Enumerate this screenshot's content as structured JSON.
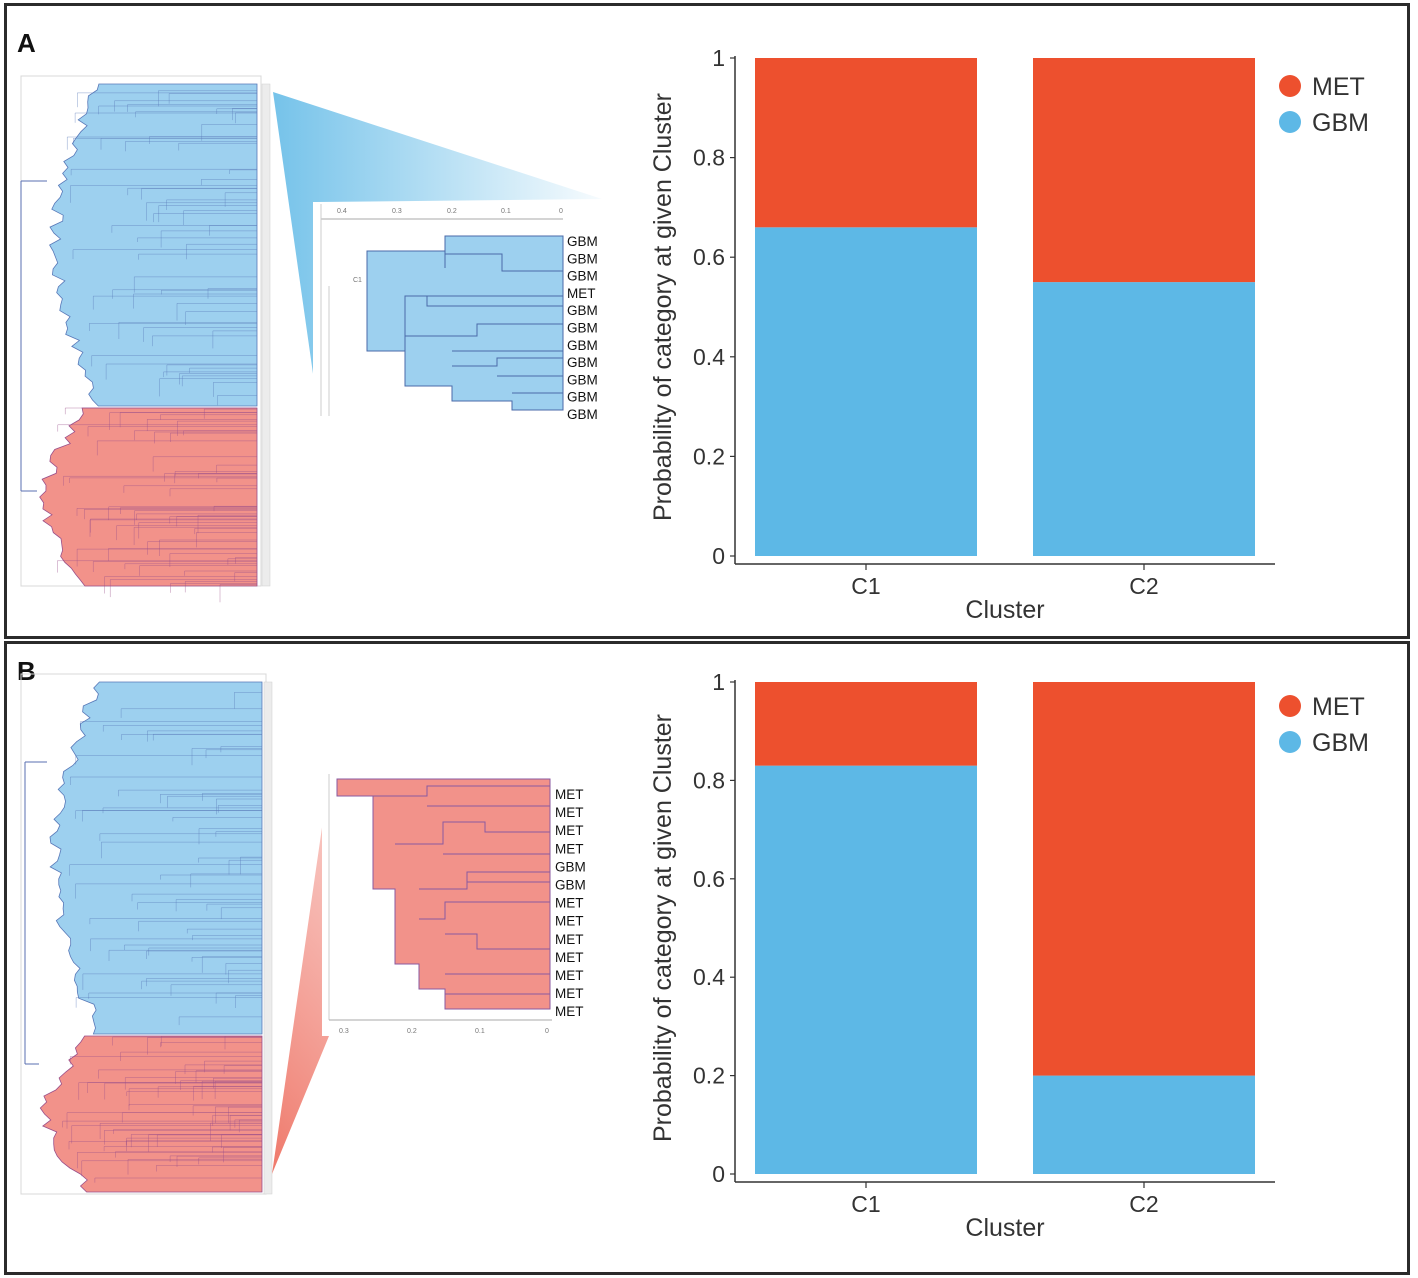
{
  "colors": {
    "met": "#ed502e",
    "gbm": "#5db8e6",
    "tree_blue": "#9dd0ef",
    "tree_red": "#f2928a"
  },
  "panels": [
    {
      "label": "A",
      "inset": {
        "cluster_label": "C1",
        "axis_ticks": [
          "0.4",
          "0.3",
          "0.2",
          "0.1",
          "0"
        ],
        "leaves": [
          "GBM",
          "GBM",
          "GBM",
          "MET",
          "GBM",
          "GBM",
          "GBM",
          "GBM",
          "GBM",
          "GBM",
          "GBM"
        ]
      }
    },
    {
      "label": "B",
      "inset": {
        "axis_ticks": [
          "0.3",
          "0.2",
          "0.1",
          "0"
        ],
        "leaves": [
          "MET",
          "MET",
          "MET",
          "MET",
          "GBM",
          "GBM",
          "MET",
          "MET",
          "MET",
          "MET",
          "MET",
          "MET",
          "MET"
        ]
      }
    }
  ],
  "chart_data": [
    {
      "type": "bar",
      "stacked": true,
      "categories": [
        "C1",
        "C2"
      ],
      "series": [
        {
          "name": "GBM",
          "values": [
            0.66,
            0.55
          ]
        },
        {
          "name": "MET",
          "values": [
            0.34,
            0.45
          ]
        }
      ],
      "title": "",
      "xlabel": "Cluster",
      "ylabel": "Probability of category at given Cluster",
      "ylim": [
        0,
        1
      ],
      "yticks": [
        "0",
        "0.2",
        "0.4",
        "0.6",
        "0.8",
        "1"
      ],
      "legend": [
        "MET",
        "GBM"
      ],
      "legend_position": "top-right"
    },
    {
      "type": "bar",
      "stacked": true,
      "categories": [
        "C1",
        "C2"
      ],
      "series": [
        {
          "name": "GBM",
          "values": [
            0.83,
            0.2
          ]
        },
        {
          "name": "MET",
          "values": [
            0.17,
            0.8
          ]
        }
      ],
      "title": "",
      "xlabel": "Cluster",
      "ylabel": "Probability of category at given Cluster",
      "ylim": [
        0,
        1
      ],
      "yticks": [
        "0",
        "0.2",
        "0.4",
        "0.6",
        "0.8",
        "1"
      ],
      "legend": [
        "MET",
        "GBM"
      ],
      "legend_position": "top-right"
    }
  ]
}
